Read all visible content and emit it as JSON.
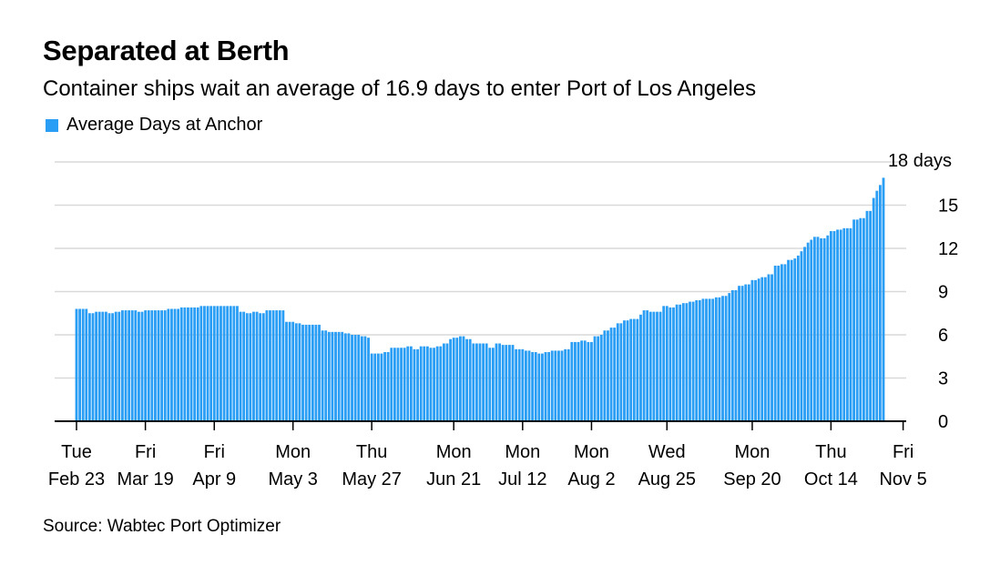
{
  "title": "Separated at Berth",
  "subtitle": "Container ships wait an average of 16.9 days to enter Port of Los Angeles",
  "source": "Source: Wabtec Port Optimizer",
  "colors": {
    "bar": "#2a9df4",
    "grid": "#d9d9d9",
    "axis": "#000000"
  },
  "chart_data": {
    "type": "bar",
    "legend": [
      {
        "name": "Average Days at Anchor",
        "color": "#2a9df4"
      }
    ],
    "ylim": [
      0,
      18
    ],
    "yticks": [
      {
        "value": 0,
        "label": "0"
      },
      {
        "value": 3,
        "label": "3"
      },
      {
        "value": 6,
        "label": "6"
      },
      {
        "value": 9,
        "label": "9"
      },
      {
        "value": 12,
        "label": "12"
      },
      {
        "value": 15,
        "label": "15"
      },
      {
        "value": 18,
        "label": "18 days"
      }
    ],
    "xticks": [
      {
        "index": 0,
        "line1": "Tue",
        "line2": "Feb 23"
      },
      {
        "index": 21,
        "line1": "Fri",
        "line2": "Mar 19"
      },
      {
        "index": 42,
        "line1": "Fri",
        "line2": "Apr 9"
      },
      {
        "index": 66,
        "line1": "Mon",
        "line2": "May 3"
      },
      {
        "index": 90,
        "line1": "Thu",
        "line2": "May 27"
      },
      {
        "index": 115,
        "line1": "Mon",
        "line2": "Jun 21"
      },
      {
        "index": 136,
        "line1": "Mon",
        "line2": "Jul 12"
      },
      {
        "index": 157,
        "line1": "Mon",
        "line2": "Aug 2"
      },
      {
        "index": 180,
        "line1": "Wed",
        "line2": "Aug 25"
      },
      {
        "index": 206,
        "line1": "Mon",
        "line2": "Sep 20"
      },
      {
        "index": 230,
        "line1": "Thu",
        "line2": "Oct 14"
      },
      {
        "index": 252,
        "line1": "Fri",
        "line2": "Nov 5"
      }
    ],
    "x_start": "2021-02-23",
    "values": [
      7.8,
      7.8,
      7.8,
      7.8,
      7.5,
      7.5,
      7.6,
      7.6,
      7.6,
      7.6,
      7.5,
      7.5,
      7.6,
      7.6,
      7.7,
      7.7,
      7.7,
      7.7,
      7.7,
      7.6,
      7.6,
      7.7,
      7.7,
      7.7,
      7.7,
      7.7,
      7.7,
      7.7,
      7.8,
      7.8,
      7.8,
      7.8,
      7.9,
      7.9,
      7.9,
      7.9,
      7.9,
      7.9,
      8.0,
      8.0,
      8.0,
      8.0,
      8.0,
      8.0,
      8.0,
      8.0,
      8.0,
      8.0,
      8.0,
      8.0,
      7.6,
      7.6,
      7.5,
      7.5,
      7.6,
      7.6,
      7.5,
      7.5,
      7.7,
      7.7,
      7.7,
      7.7,
      7.7,
      7.7,
      6.9,
      6.9,
      6.9,
      6.8,
      6.8,
      6.7,
      6.7,
      6.7,
      6.7,
      6.7,
      6.7,
      6.3,
      6.3,
      6.2,
      6.2,
      6.2,
      6.2,
      6.2,
      6.1,
      6.1,
      6.0,
      6.0,
      6.0,
      5.9,
      5.9,
      5.8,
      4.7,
      4.7,
      4.7,
      4.7,
      4.8,
      4.8,
      5.1,
      5.1,
      5.1,
      5.1,
      5.1,
      5.2,
      5.2,
      5.0,
      5.0,
      5.2,
      5.2,
      5.2,
      5.1,
      5.1,
      5.2,
      5.2,
      5.4,
      5.4,
      5.7,
      5.8,
      5.8,
      5.9,
      5.9,
      5.7,
      5.7,
      5.4,
      5.4,
      5.4,
      5.4,
      5.4,
      5.1,
      5.1,
      5.4,
      5.4,
      5.3,
      5.3,
      5.3,
      5.3,
      5.0,
      5.0,
      5.0,
      4.9,
      4.9,
      4.8,
      4.8,
      4.7,
      4.7,
      4.8,
      4.8,
      4.9,
      4.9,
      4.9,
      4.9,
      5.0,
      5.0,
      5.5,
      5.5,
      5.5,
      5.6,
      5.6,
      5.5,
      5.5,
      5.9,
      5.9,
      6.0,
      6.3,
      6.3,
      6.5,
      6.5,
      6.8,
      6.8,
      7.0,
      7.0,
      7.1,
      7.1,
      7.1,
      7.4,
      7.7,
      7.7,
      7.6,
      7.6,
      7.6,
      7.6,
      8.0,
      8.0,
      7.9,
      7.9,
      8.1,
      8.1,
      8.2,
      8.2,
      8.3,
      8.3,
      8.4,
      8.4,
      8.5,
      8.5,
      8.5,
      8.5,
      8.6,
      8.6,
      8.7,
      8.7,
      8.9,
      9.1,
      9.1,
      9.4,
      9.4,
      9.5,
      9.5,
      9.8,
      9.8,
      9.9,
      10.0,
      10.0,
      10.2,
      10.2,
      10.8,
      10.8,
      10.9,
      10.9,
      11.2,
      11.2,
      11.3,
      11.5,
      11.8,
      12.1,
      12.4,
      12.6,
      12.8,
      12.8,
      12.7,
      12.7,
      12.9,
      13.2,
      13.2,
      13.3,
      13.3,
      13.4,
      13.4,
      13.4,
      14.0,
      14.0,
      14.1,
      14.1,
      14.6,
      14.6,
      15.5,
      16.0,
      16.4,
      16.9
    ]
  }
}
